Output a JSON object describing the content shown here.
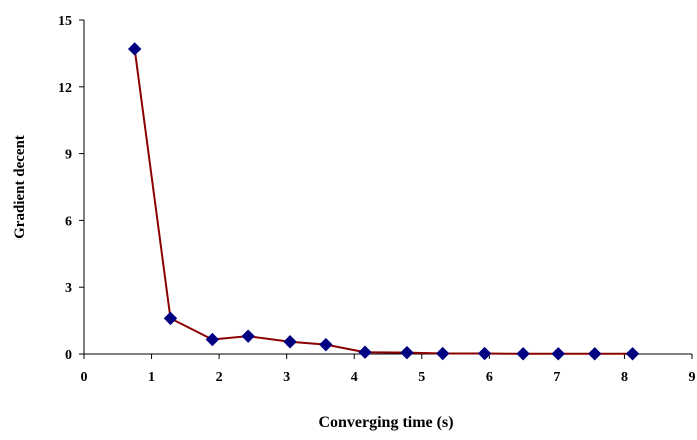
{
  "chart_data": {
    "type": "line",
    "xlabel": "Converging time (s)",
    "ylabel": "Gradient decent",
    "xlim": [
      0,
      9
    ],
    "ylim": [
      0,
      15
    ],
    "x_ticks": [
      "0",
      "1",
      "2",
      "3",
      "4",
      "5",
      "6",
      "7",
      "8",
      "9"
    ],
    "y_ticks": [
      "0",
      "3",
      "6",
      "9",
      "12",
      "15"
    ],
    "grid": false,
    "legend": "none",
    "series": [
      {
        "x": [
          0.75,
          1.28,
          1.9,
          2.43,
          3.05,
          3.58,
          4.16,
          4.78,
          5.31,
          5.93,
          6.5,
          7.02,
          7.56,
          8.12
        ],
        "y": [
          13.7,
          1.6,
          0.65,
          0.8,
          0.55,
          0.42,
          0.08,
          0.06,
          0.02,
          0.02,
          0.01,
          0.01,
          0.01,
          0.01
        ],
        "line_color": "#8B0000",
        "marker_color": "#000080",
        "marker": "diamond"
      }
    ]
  }
}
